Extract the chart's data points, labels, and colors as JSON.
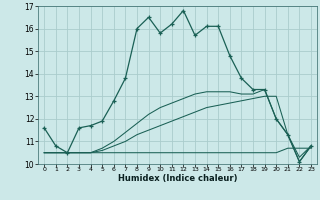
{
  "xlabel": "Humidex (Indice chaleur)",
  "background_color": "#cce8e8",
  "grid_color": "#aacccc",
  "line_color": "#1a6055",
  "xlim": [
    -0.5,
    23.5
  ],
  "ylim": [
    10,
    17
  ],
  "xticks": [
    0,
    1,
    2,
    3,
    4,
    5,
    6,
    7,
    8,
    9,
    10,
    11,
    12,
    13,
    14,
    15,
    16,
    17,
    18,
    19,
    20,
    21,
    22,
    23
  ],
  "yticks": [
    10,
    11,
    12,
    13,
    14,
    15,
    16,
    17
  ],
  "series": [
    [
      11.6,
      10.8,
      10.5,
      11.6,
      11.7,
      11.9,
      12.8,
      13.8,
      16.0,
      16.5,
      15.8,
      16.2,
      16.8,
      15.7,
      16.1,
      16.1,
      14.8,
      13.8,
      13.3,
      13.3,
      12.0,
      11.3,
      10.1,
      10.8
    ],
    [
      10.5,
      10.5,
      10.5,
      10.5,
      10.5,
      10.5,
      10.5,
      10.5,
      10.5,
      10.5,
      10.5,
      10.5,
      10.5,
      10.5,
      10.5,
      10.5,
      10.5,
      10.5,
      10.5,
      10.5,
      10.5,
      10.7,
      10.7,
      10.7
    ],
    [
      10.5,
      10.5,
      10.5,
      10.5,
      10.5,
      10.6,
      10.8,
      11.0,
      11.3,
      11.5,
      11.7,
      11.9,
      12.1,
      12.3,
      12.5,
      12.6,
      12.7,
      12.8,
      12.9,
      13.0,
      13.0,
      11.3,
      10.3,
      10.8
    ],
    [
      10.5,
      10.5,
      10.5,
      10.5,
      10.5,
      10.7,
      11.0,
      11.4,
      11.8,
      12.2,
      12.5,
      12.7,
      12.9,
      13.1,
      13.2,
      13.2,
      13.2,
      13.1,
      13.1,
      13.3,
      12.0,
      11.3,
      10.1,
      10.8
    ]
  ]
}
